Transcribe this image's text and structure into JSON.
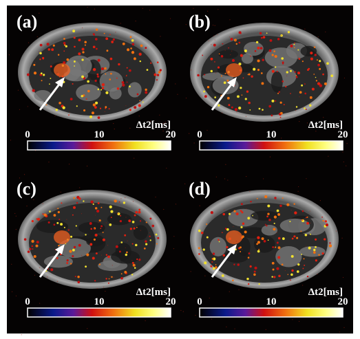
{
  "panels": [
    {
      "label": "(a)",
      "colorbar": {
        "title": "Δt2[ms]",
        "range": [
          0,
          20
        ],
        "ticks": [
          0,
          10,
          20
        ]
      }
    },
    {
      "label": "(b)",
      "colorbar": {
        "title": "Δt2[ms]",
        "range": [
          0,
          20
        ],
        "ticks": [
          0,
          10,
          20
        ]
      }
    },
    {
      "label": "(c)",
      "colorbar": {
        "title": "Δt2[ms]",
        "range": [
          0,
          20
        ],
        "ticks": [
          0,
          10,
          20
        ]
      }
    },
    {
      "label": "(d)",
      "colorbar": {
        "title": "Δt2[ms]",
        "range": [
          0,
          20
        ],
        "ticks": [
          0,
          10,
          20
        ]
      }
    }
  ]
}
